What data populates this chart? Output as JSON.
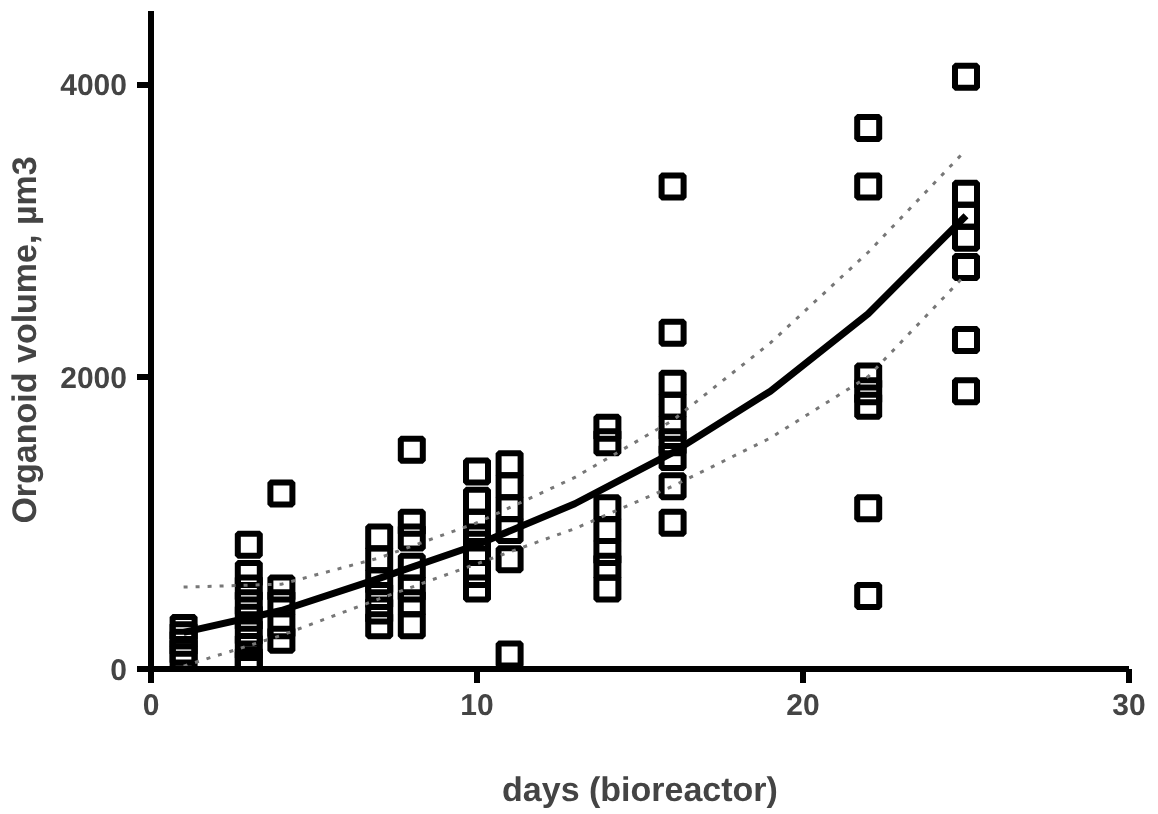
{
  "chart_data": {
    "type": "scatter",
    "xlabel": "days (bioreactor)",
    "ylabel": "Organoid volume, µm3",
    "xlim": [
      0,
      30
    ],
    "xticks": [
      0,
      10,
      20,
      30
    ],
    "ylim": [
      0,
      4500
    ],
    "yticks": [
      0,
      2000,
      4000
    ],
    "grid": false,
    "series": [
      {
        "color": "#000000",
        "marker": "square",
        "x": [
          1,
          1,
          1,
          1,
          1,
          3,
          3,
          3,
          3,
          3,
          3,
          3,
          3,
          3,
          4,
          4,
          4,
          4,
          4,
          7,
          7,
          7,
          7,
          7,
          7,
          8,
          8,
          8,
          8,
          8,
          8,
          8,
          10,
          10,
          10,
          10,
          10,
          10,
          10,
          11,
          11,
          11,
          11,
          11,
          11,
          14,
          14,
          14,
          14,
          14,
          14,
          14,
          16,
          16,
          16,
          16,
          16,
          16,
          16,
          16,
          16,
          22,
          22,
          22,
          22,
          22,
          22,
          22,
          25,
          25,
          25,
          25,
          25,
          25,
          25
        ],
        "values": [
          280,
          230,
          180,
          120,
          80,
          850,
          650,
          550,
          450,
          350,
          250,
          150,
          60,
          40,
          1200,
          550,
          450,
          300,
          200,
          900,
          750,
          600,
          500,
          400,
          300,
          1500,
          1000,
          900,
          700,
          550,
          450,
          300,
          1350,
          1150,
          1000,
          900,
          800,
          650,
          550,
          1400,
          1250,
          1100,
          950,
          750,
          100,
          1650,
          1550,
          1100,
          950,
          800,
          700,
          550,
          3300,
          2300,
          1950,
          1800,
          1650,
          1550,
          1450,
          1250,
          1000,
          3700,
          3300,
          2000,
          1900,
          1800,
          1100,
          500,
          4050,
          3250,
          3100,
          2950,
          2750,
          2250,
          1900
        ]
      },
      {
        "type": "line",
        "color": "#000000",
        "line_style": "solid",
        "marker": "none",
        "x": [
          1,
          4,
          7,
          10,
          13,
          16,
          19,
          22,
          25
        ],
        "values": [
          250,
          400,
          620,
          850,
          1130,
          1480,
          1900,
          2430,
          3100
        ]
      },
      {
        "type": "line",
        "color": "#777777",
        "line_style": "dotted",
        "marker": "none",
        "x": [
          1,
          4,
          7,
          10,
          13,
          16,
          19,
          22,
          25
        ],
        "values": [
          560,
          580,
          760,
          1000,
          1310,
          1700,
          2230,
          2850,
          3550
        ]
      },
      {
        "type": "line",
        "color": "#777777",
        "line_style": "dotted",
        "marker": "none",
        "x": [
          1,
          4,
          7,
          10,
          13,
          16,
          19,
          22,
          25
        ],
        "values": [
          20,
          230,
          480,
          720,
          960,
          1250,
          1580,
          2000,
          2700
        ]
      }
    ]
  }
}
